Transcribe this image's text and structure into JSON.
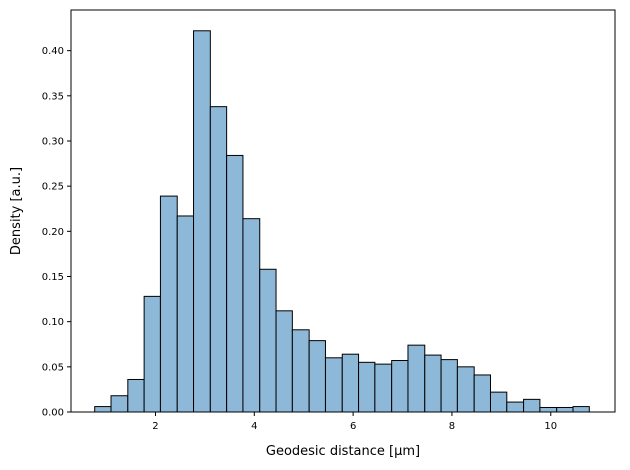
{
  "chart_data": {
    "type": "bar",
    "subtype": "histogram",
    "xlabel": "Geodesic distance [μm]",
    "ylabel": "Density [a.u.]",
    "xlim": [
      0.29,
      11.3
    ],
    "ylim": [
      0,
      0.445
    ],
    "xticks": [
      2,
      4,
      6,
      8,
      10
    ],
    "yticks": [
      0.0,
      0.05,
      0.1,
      0.15,
      0.2,
      0.25,
      0.3,
      0.35,
      0.4
    ],
    "grid": false,
    "legend": "none",
    "bar_color": "#8db8d8",
    "edge_color": "#000000",
    "bins": [
      {
        "x0": 0.77,
        "x1": 1.1,
        "value": 0.006
      },
      {
        "x0": 1.1,
        "x1": 1.44,
        "value": 0.018
      },
      {
        "x0": 1.44,
        "x1": 1.77,
        "value": 0.036
      },
      {
        "x0": 1.77,
        "x1": 2.1,
        "value": 0.128
      },
      {
        "x0": 2.1,
        "x1": 2.44,
        "value": 0.239
      },
      {
        "x0": 2.44,
        "x1": 2.77,
        "value": 0.217
      },
      {
        "x0": 2.77,
        "x1": 3.11,
        "value": 0.422
      },
      {
        "x0": 3.11,
        "x1": 3.44,
        "value": 0.338
      },
      {
        "x0": 3.44,
        "x1": 3.77,
        "value": 0.284
      },
      {
        "x0": 3.77,
        "x1": 4.11,
        "value": 0.214
      },
      {
        "x0": 4.11,
        "x1": 4.44,
        "value": 0.158
      },
      {
        "x0": 4.44,
        "x1": 4.77,
        "value": 0.112
      },
      {
        "x0": 4.77,
        "x1": 5.11,
        "value": 0.091
      },
      {
        "x0": 5.11,
        "x1": 5.44,
        "value": 0.079
      },
      {
        "x0": 5.44,
        "x1": 5.78,
        "value": 0.06
      },
      {
        "x0": 5.78,
        "x1": 6.11,
        "value": 0.064
      },
      {
        "x0": 6.11,
        "x1": 6.44,
        "value": 0.055
      },
      {
        "x0": 6.44,
        "x1": 6.78,
        "value": 0.053
      },
      {
        "x0": 6.78,
        "x1": 7.11,
        "value": 0.057
      },
      {
        "x0": 7.11,
        "x1": 7.45,
        "value": 0.074
      },
      {
        "x0": 7.45,
        "x1": 7.78,
        "value": 0.063
      },
      {
        "x0": 7.78,
        "x1": 8.11,
        "value": 0.058
      },
      {
        "x0": 8.11,
        "x1": 8.45,
        "value": 0.05
      },
      {
        "x0": 8.45,
        "x1": 8.78,
        "value": 0.041
      },
      {
        "x0": 8.78,
        "x1": 9.11,
        "value": 0.022
      },
      {
        "x0": 9.11,
        "x1": 9.45,
        "value": 0.011
      },
      {
        "x0": 9.45,
        "x1": 9.78,
        "value": 0.014
      },
      {
        "x0": 9.78,
        "x1": 10.12,
        "value": 0.005
      },
      {
        "x0": 10.12,
        "x1": 10.45,
        "value": 0.005
      },
      {
        "x0": 10.45,
        "x1": 10.78,
        "value": 0.006
      }
    ]
  }
}
